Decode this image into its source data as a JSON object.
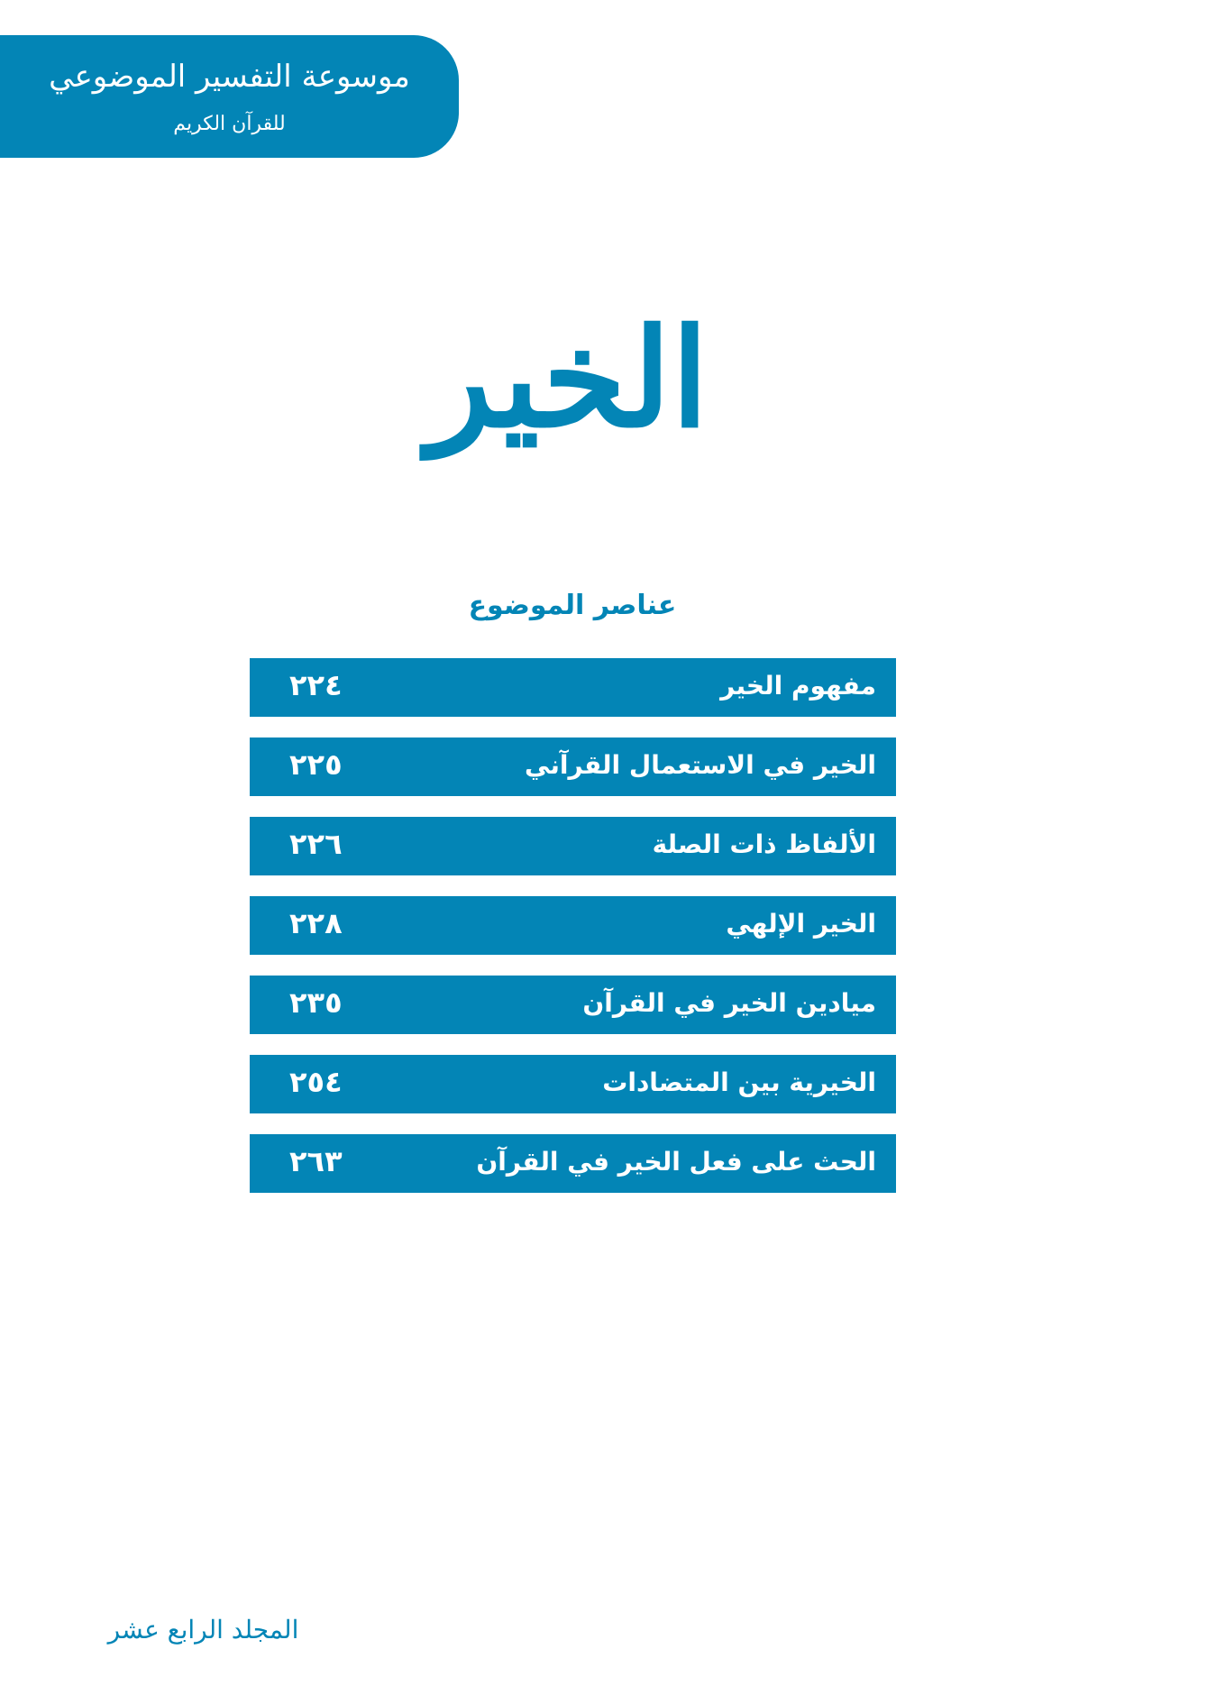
{
  "header": {
    "logo_title": "موسوعة التفسير الموضوعي",
    "logo_subtitle": "للقرآن الكريم"
  },
  "title": "الخير",
  "toc": {
    "heading": "عناصر الموضوع",
    "items": [
      {
        "label": "مفهوم الخير",
        "page": "٢٢٤"
      },
      {
        "label": "الخير في الاستعمال القرآني",
        "page": "٢٢٥"
      },
      {
        "label": "الألفاظ ذات الصلة",
        "page": "٢٢٦"
      },
      {
        "label": "الخير الإلهي",
        "page": "٢٢٨"
      },
      {
        "label": "ميادين الخير في القرآن",
        "page": "٢٣٥"
      },
      {
        "label": "الخيرية بين المتضادات",
        "page": "٢٥٤"
      },
      {
        "label": "الحث على فعل الخير في القرآن",
        "page": "٢٦٣"
      }
    ]
  },
  "footer": {
    "volume": "المجلد الرابع عشر"
  },
  "colors": {
    "accent": "#0385b6",
    "text_on_accent": "#ffffff"
  }
}
